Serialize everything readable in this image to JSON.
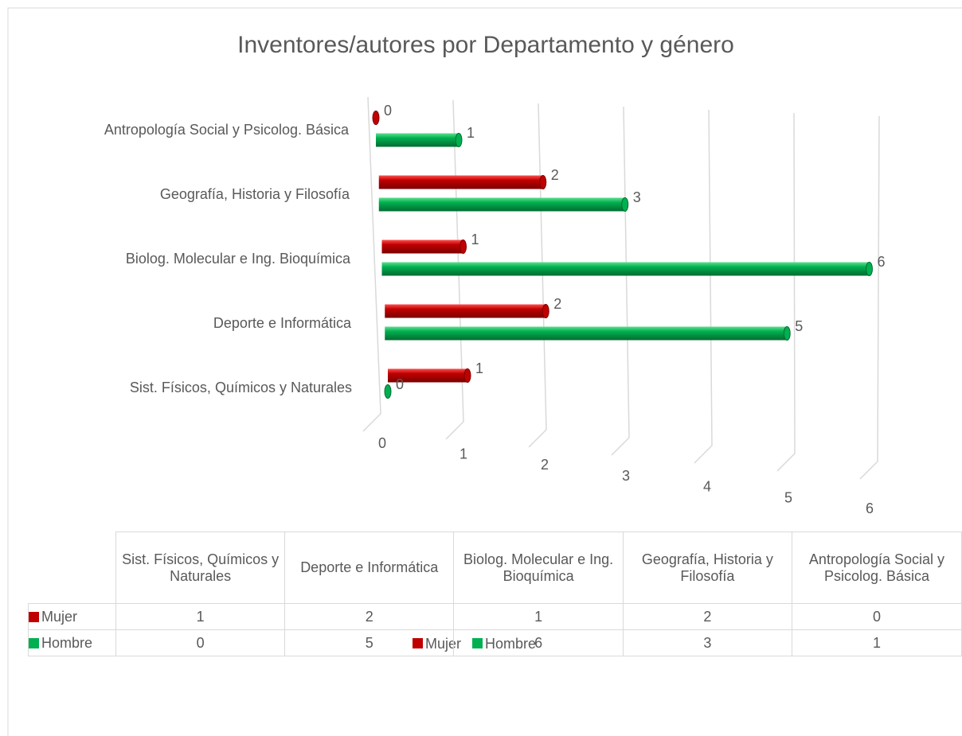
{
  "chart_data": {
    "type": "bar",
    "title": "Inventores/autores por Departamento y género",
    "categories": [
      "Sist. Físicos, Químicos y Naturales",
      "Deporte e Informática",
      "Biolog. Molecular e Ing. Bioquímica",
      "Geografía, Historia y Filosofía",
      "Antropología Social y Psicolog. Básica"
    ],
    "series": [
      {
        "name": "Mujer",
        "color": "#c00000",
        "values": [
          1,
          2,
          1,
          2,
          0
        ]
      },
      {
        "name": "Hombre",
        "color": "#00b050",
        "values": [
          0,
          5,
          6,
          3,
          1
        ]
      }
    ],
    "xlim": [
      0,
      6
    ],
    "xticks": [
      0,
      1,
      2,
      3,
      4,
      5,
      6
    ],
    "grid": true,
    "legend": "bottom",
    "data_table": true
  }
}
